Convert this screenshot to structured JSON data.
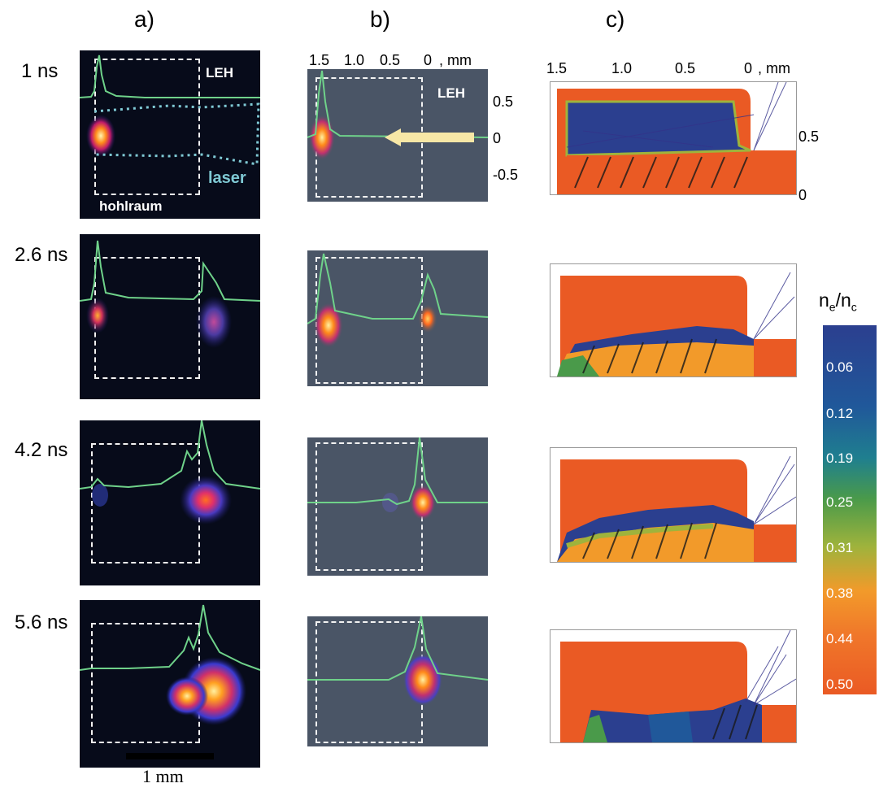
{
  "columns": [
    "a)",
    "b)",
    "c)"
  ],
  "times": [
    "1 ns",
    "2.6 ns",
    "4.2 ns",
    "5.6 ns"
  ],
  "panel_a": {
    "leh_label": "LEH",
    "laser_label": "laser",
    "hohlraum_label": "hohlraum",
    "scale_bar_label": "1 mm",
    "laser_color": "#7fc9d4"
  },
  "panel_b": {
    "leh_label": "LEH",
    "x_ticks": [
      "1.5",
      "1.0",
      "0.5",
      "0",
      ", mm"
    ],
    "y_ticks": [
      "0.5",
      "0",
      "-0.5"
    ],
    "arrow_color": "#f7e7a6"
  },
  "panel_c": {
    "x_ticks": [
      "1.5",
      "1.0",
      "0.5",
      "0",
      ", mm"
    ],
    "y_ticks": [
      "0.5",
      "0"
    ]
  },
  "colorbar": {
    "title_main": "n",
    "title_sub1": "e",
    "title_slash": "/n",
    "title_sub2": "c",
    "values": [
      "0.06",
      "0.12",
      "0.19",
      "0.25",
      "0.31",
      "0.38",
      "0.44",
      "0.50"
    ],
    "colors": [
      "#2b3f8f",
      "#20589a",
      "#1f7f8f",
      "#4a9a4a",
      "#9fb33c",
      "#f29a2a",
      "#f0772a",
      "#ea5a24"
    ]
  }
}
